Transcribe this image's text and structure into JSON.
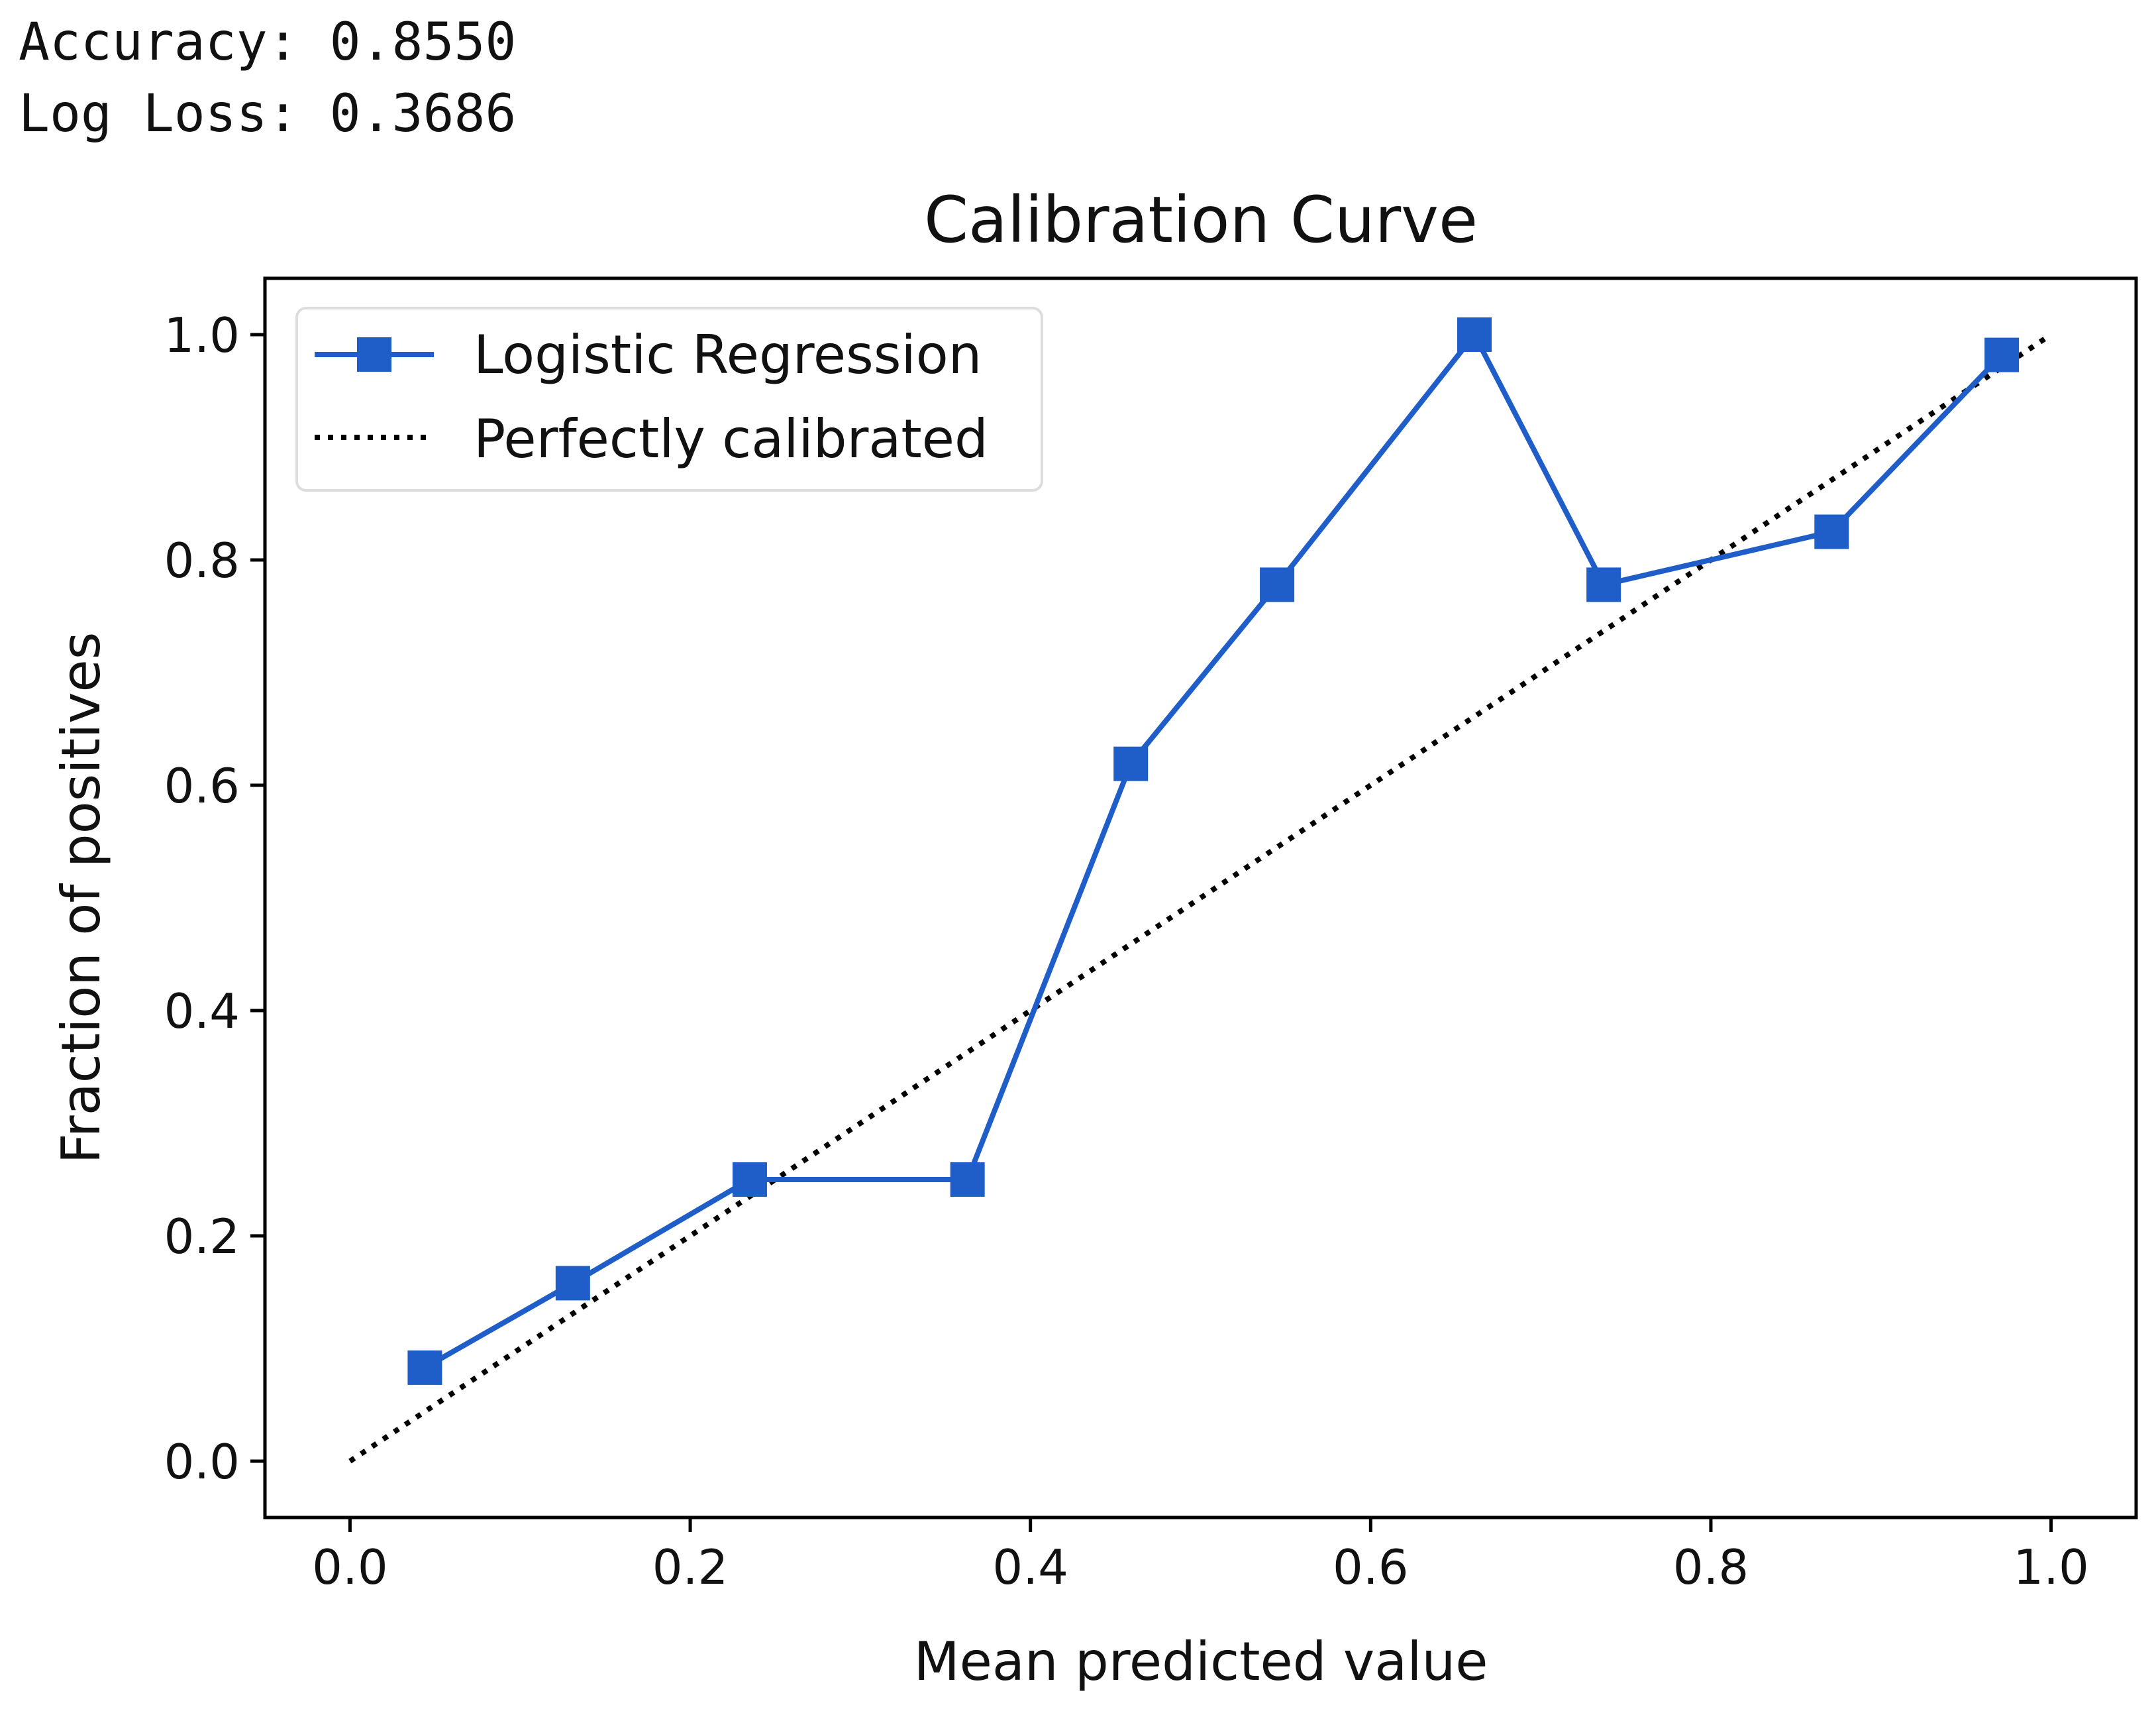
{
  "console": {
    "accuracy_line": "Accuracy: 0.8550",
    "logloss_line": "Log Loss: 0.3686"
  },
  "chart_data": {
    "type": "line",
    "title": "Calibration Curve",
    "xlabel": "Mean predicted value",
    "ylabel": "Fraction of positives",
    "xlim": [
      -0.05,
      1.05
    ],
    "ylim": [
      -0.05,
      1.05
    ],
    "xticks": [
      0.0,
      0.2,
      0.4,
      0.6,
      0.8,
      1.0
    ],
    "yticks": [
      0.0,
      0.2,
      0.4,
      0.6,
      0.8,
      1.0
    ],
    "xtick_labels": [
      "0.0",
      "0.2",
      "0.4",
      "0.6",
      "0.8",
      "1.0"
    ],
    "ytick_labels": [
      "0.0",
      "0.2",
      "0.4",
      "0.6",
      "0.8",
      "1.0"
    ],
    "grid": false,
    "legend_position": "upper-left",
    "series": [
      {
        "name": "Logistic Regression",
        "style": "solid-square-markers",
        "color": "#1f5ec8",
        "x": [
          0.044,
          0.131,
          0.235,
          0.363,
          0.459,
          0.545,
          0.661,
          0.737,
          0.871,
          0.971
        ],
        "y": [
          0.083,
          0.158,
          0.25,
          0.25,
          0.619,
          0.778,
          1.0,
          0.778,
          0.825,
          0.982
        ]
      },
      {
        "name": "Perfectly calibrated",
        "style": "dotted",
        "color": "#000000",
        "x": [
          0.0,
          1.0
        ],
        "y": [
          0.0,
          1.0
        ]
      }
    ]
  }
}
